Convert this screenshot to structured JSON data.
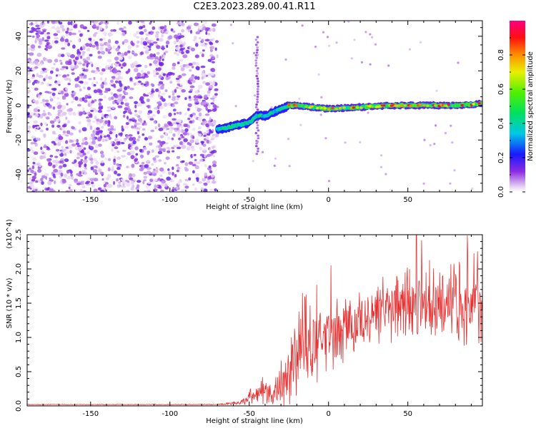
{
  "title": "C2E3.2023.289.00.41.R11",
  "chart_data": [
    {
      "type": "heatmap",
      "xlabel": "Height of straight line (km)",
      "ylabel": "Frequency (Hz)",
      "xlim": [
        -190,
        97
      ],
      "ylim": [
        -50,
        49
      ],
      "xticks": [
        -150,
        -100,
        -50,
        0,
        50
      ],
      "yticks": [
        -40,
        -20,
        0,
        20,
        40
      ],
      "colorbar": {
        "label": "Normalized spectral amplitude",
        "range": [
          0,
          1
        ],
        "ticks": [
          "0.0",
          "0.2",
          "0.4",
          "0.6",
          "0.8"
        ],
        "colormap": "rainbow (white-violet-blue-cyan-green-yellow-red-magenta)"
      },
      "ridge": {
        "x": [
          -70,
          -60,
          -50,
          -45,
          -40,
          -30,
          -25,
          -20,
          0,
          20,
          40,
          60,
          80,
          97
        ],
        "y": [
          -14,
          -12,
          -10,
          -6,
          -6,
          -2,
          0,
          0,
          -2,
          -1,
          0,
          0,
          0,
          1
        ],
        "peak_amplitude": 0.95
      }
    },
    {
      "type": "line",
      "xlabel": "Height of straight line (km)",
      "ylabel": "SNR (10 * v/v)",
      "y_multiplier": "(x10^4)",
      "xlim": [
        -190,
        97
      ],
      "ylim": [
        0,
        2.5
      ],
      "xticks": [
        -150,
        -100,
        -50,
        0,
        50
      ],
      "yticks": [
        "0.0",
        "0.5",
        "1.0",
        "1.5",
        "2.0",
        "2.5"
      ],
      "series": [
        {
          "color": "#e83232",
          "x": [
            -190,
            -150,
            -100,
            -70,
            -55,
            -50,
            -45,
            -40,
            -35,
            -30,
            -25,
            -20,
            -15,
            -10,
            -5,
            0,
            5,
            10,
            15,
            20,
            25,
            30,
            35,
            40,
            45,
            50,
            55,
            60,
            65,
            70,
            75,
            80,
            85,
            90,
            95,
            97
          ],
          "y": [
            0.02,
            0.02,
            0.02,
            0.02,
            0.05,
            0.12,
            0.2,
            0.25,
            0.15,
            0.25,
            0.5,
            0.7,
            0.85,
            0.9,
            0.95,
            1.0,
            1.05,
            1.1,
            1.15,
            1.25,
            1.3,
            1.35,
            1.4,
            1.45,
            1.45,
            1.5,
            1.5,
            1.55,
            1.55,
            1.5,
            1.55,
            1.55,
            1.5,
            1.5,
            1.45,
            1.4
          ],
          "noise_amplitude": [
            0.005,
            0.005,
            0.005,
            0.005,
            0.04,
            0.1,
            0.15,
            0.2,
            0.15,
            0.3,
            0.45,
            0.5,
            0.55,
            0.55,
            0.5,
            0.5,
            0.5,
            0.5,
            0.5,
            0.5,
            0.5,
            0.5,
            0.5,
            0.5,
            0.55,
            0.55,
            0.55,
            0.55,
            0.55,
            0.55,
            0.55,
            0.6,
            0.6,
            0.65,
            0.65,
            0.6
          ]
        }
      ]
    }
  ]
}
